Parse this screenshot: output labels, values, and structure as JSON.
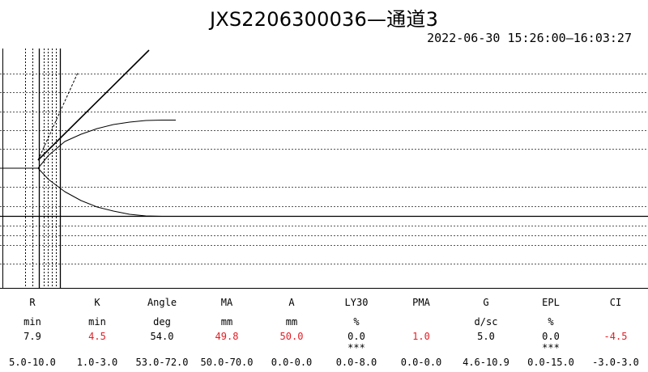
{
  "header": {
    "title": "JXS2206300036—通道3",
    "time_range": "2022-06-30 15:26:00—16:03:27"
  },
  "chart_data": {
    "type": "line",
    "title": "JXS2206300036—通道3",
    "grid": true,
    "series": [
      {
        "values": [
          [
            0,
            208
          ],
          [
            47,
            208
          ],
          [
            60,
            192
          ],
          [
            80,
            175
          ],
          [
            100,
            166
          ],
          [
            120,
            159
          ],
          [
            140,
            154
          ],
          [
            160,
            151
          ],
          [
            180,
            149
          ],
          [
            200,
            148.5
          ],
          [
            217,
            148.5
          ]
        ]
      },
      {
        "values": [
          [
            0,
            208
          ],
          [
            47,
            208
          ],
          [
            60,
            222
          ],
          [
            80,
            237
          ],
          [
            100,
            248
          ],
          [
            120,
            256
          ],
          [
            140,
            261
          ],
          [
            160,
            265
          ],
          [
            180,
            267
          ],
          [
            200,
            267.5
          ],
          [
            217,
            267.5
          ]
        ]
      },
      {
        "values": [
          [
            47,
            198
          ],
          [
            184,
            62
          ]
        ]
      },
      {
        "values": [
          [
            47,
            198
          ],
          [
            96,
            90
          ]
        ]
      }
    ]
  },
  "params": {
    "columns": [
      {
        "name": "R",
        "unit": "min",
        "value": "7.9",
        "value2": "",
        "ref": "5.0-10.0",
        "flag": false
      },
      {
        "name": "K",
        "unit": "min",
        "value": "4.5",
        "value2": "",
        "ref": "1.0-3.0",
        "flag": true
      },
      {
        "name": "Angle",
        "unit": "deg",
        "value": "54.0",
        "value2": "",
        "ref": "53.0-72.0",
        "flag": false
      },
      {
        "name": "MA",
        "unit": "mm",
        "value": "49.8",
        "value2": "",
        "ref": "50.0-70.0",
        "flag": true
      },
      {
        "name": "A",
        "unit": "mm",
        "value": "50.0",
        "value2": "",
        "ref": "0.0-0.0",
        "flag": true
      },
      {
        "name": "LY30",
        "unit": "%",
        "value": "0.0",
        "value2": "***",
        "ref": "0.0-8.0",
        "flag": false
      },
      {
        "name": "PMA",
        "unit": "",
        "value": "1.0",
        "value2": "",
        "ref": "0.0-0.0",
        "flag": true
      },
      {
        "name": "G",
        "unit": "d/sc",
        "value": "5.0",
        "value2": "",
        "ref": "4.6-10.9",
        "flag": false
      },
      {
        "name": "EPL",
        "unit": "%",
        "value": "0.0",
        "value2": "***",
        "ref": "0.0-15.0",
        "flag": false
      },
      {
        "name": "CI",
        "unit": "",
        "value": "-4.5",
        "value2": "",
        "ref": "-3.0-3.0",
        "flag": true
      }
    ]
  },
  "colors": {
    "line": "#000000",
    "flag": "#e51c23",
    "grid": "#555555"
  }
}
